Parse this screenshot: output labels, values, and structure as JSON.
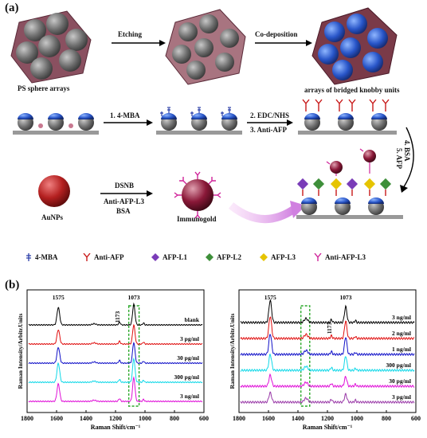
{
  "panel_a": {
    "label": "(a)",
    "caption_left": "PS sphere arrays",
    "caption_right": "arrays of bridged knobby units",
    "caption_aunp": "AuNPs",
    "caption_immunogold": "Immunogold",
    "step_etching": "Etching",
    "step_codeposition": "Co-deposition",
    "step_mba": "1. 4-MBA",
    "step_edc": "2. EDC/NHS",
    "step_antiafp": "3. Anti-AFP",
    "step_bsa": "4. BSA",
    "step_afp": "5. AFP",
    "step_dsnb": "DSNB",
    "step_antiafpl3": "Anti-AFP-L3",
    "step_bsa2": "BSA"
  },
  "legend": {
    "items": [
      {
        "label": "4-MBA",
        "icon": "mba-icon",
        "color": "#2b3ea8"
      },
      {
        "label": "Anti-AFP",
        "icon": "antibody-icon",
        "color": "#c81a1a"
      },
      {
        "label": "AFP-L1",
        "icon": "diamond-icon",
        "color": "#7a3cb8"
      },
      {
        "label": "AFP-L2",
        "icon": "diamond-icon",
        "color": "#3e8f3a"
      },
      {
        "label": "AFP-L3",
        "icon": "diamond-icon",
        "color": "#e6c400"
      },
      {
        "label": "Anti-AFP-L3",
        "icon": "antibody-icon",
        "color": "#d0249a"
      }
    ]
  },
  "panel_b": {
    "label": "(b)"
  },
  "chart_data": [
    {
      "type": "line",
      "xlabel": "Raman Shift/cm⁻¹",
      "ylabel": "Raman Intensity/Arbitr.Units",
      "xlim": [
        1800,
        600
      ],
      "xticks": [
        "1800",
        "1600",
        "1400",
        "1200",
        "1000",
        "800",
        "600"
      ],
      "peak_labels": [
        "1575",
        "1173",
        "1073"
      ],
      "highlight_region": [
        1110,
        1040
      ],
      "series": [
        {
          "name": "blank",
          "color": "#000000",
          "peak1575": 22,
          "peak1073": 26
        },
        {
          "name": "3 pg/ml",
          "color": "#e01010",
          "peak1575": 18,
          "peak1073": 24
        },
        {
          "name": "30 pg/ml",
          "color": "#1010c8",
          "peak1575": 20,
          "peak1073": 26
        },
        {
          "name": "300 pg/ml",
          "color": "#10d8e8",
          "peak1575": 24,
          "peak1073": 30
        },
        {
          "name": "3 ng/ml",
          "color": "#e010d8",
          "peak1575": 22,
          "peak1073": 30
        }
      ]
    },
    {
      "type": "line",
      "xlabel": "Raman Shift/cm⁻¹",
      "ylabel": "Raman Intensity/Arbitr.Units",
      "xlim": [
        1800,
        600
      ],
      "xticks": [
        "1800",
        "1600",
        "1400",
        "1200",
        "1000",
        "800",
        "600"
      ],
      "peak_labels": [
        "1575",
        "1173",
        "1073"
      ],
      "highlight_region": [
        1380,
        1320
      ],
      "series": [
        {
          "name": "3 ng/ml",
          "color": "#000000",
          "peak1575": 28,
          "peak1073": 20
        },
        {
          "name": "2 ng/ml",
          "color": "#e01010",
          "peak1575": 28,
          "peak1073": 22
        },
        {
          "name": "1 ng/ml",
          "color": "#1010c8",
          "peak1575": 26,
          "peak1073": 22
        },
        {
          "name": "300 pg/ml",
          "color": "#10d8e8",
          "peak1575": 20,
          "peak1073": 18
        },
        {
          "name": "30 pg/ml",
          "color": "#e010d8",
          "peak1575": 14,
          "peak1073": 12
        },
        {
          "name": "3 pg/ml",
          "color": "#9a3aa8",
          "peak1575": 12,
          "peak1073": 10
        }
      ]
    }
  ]
}
